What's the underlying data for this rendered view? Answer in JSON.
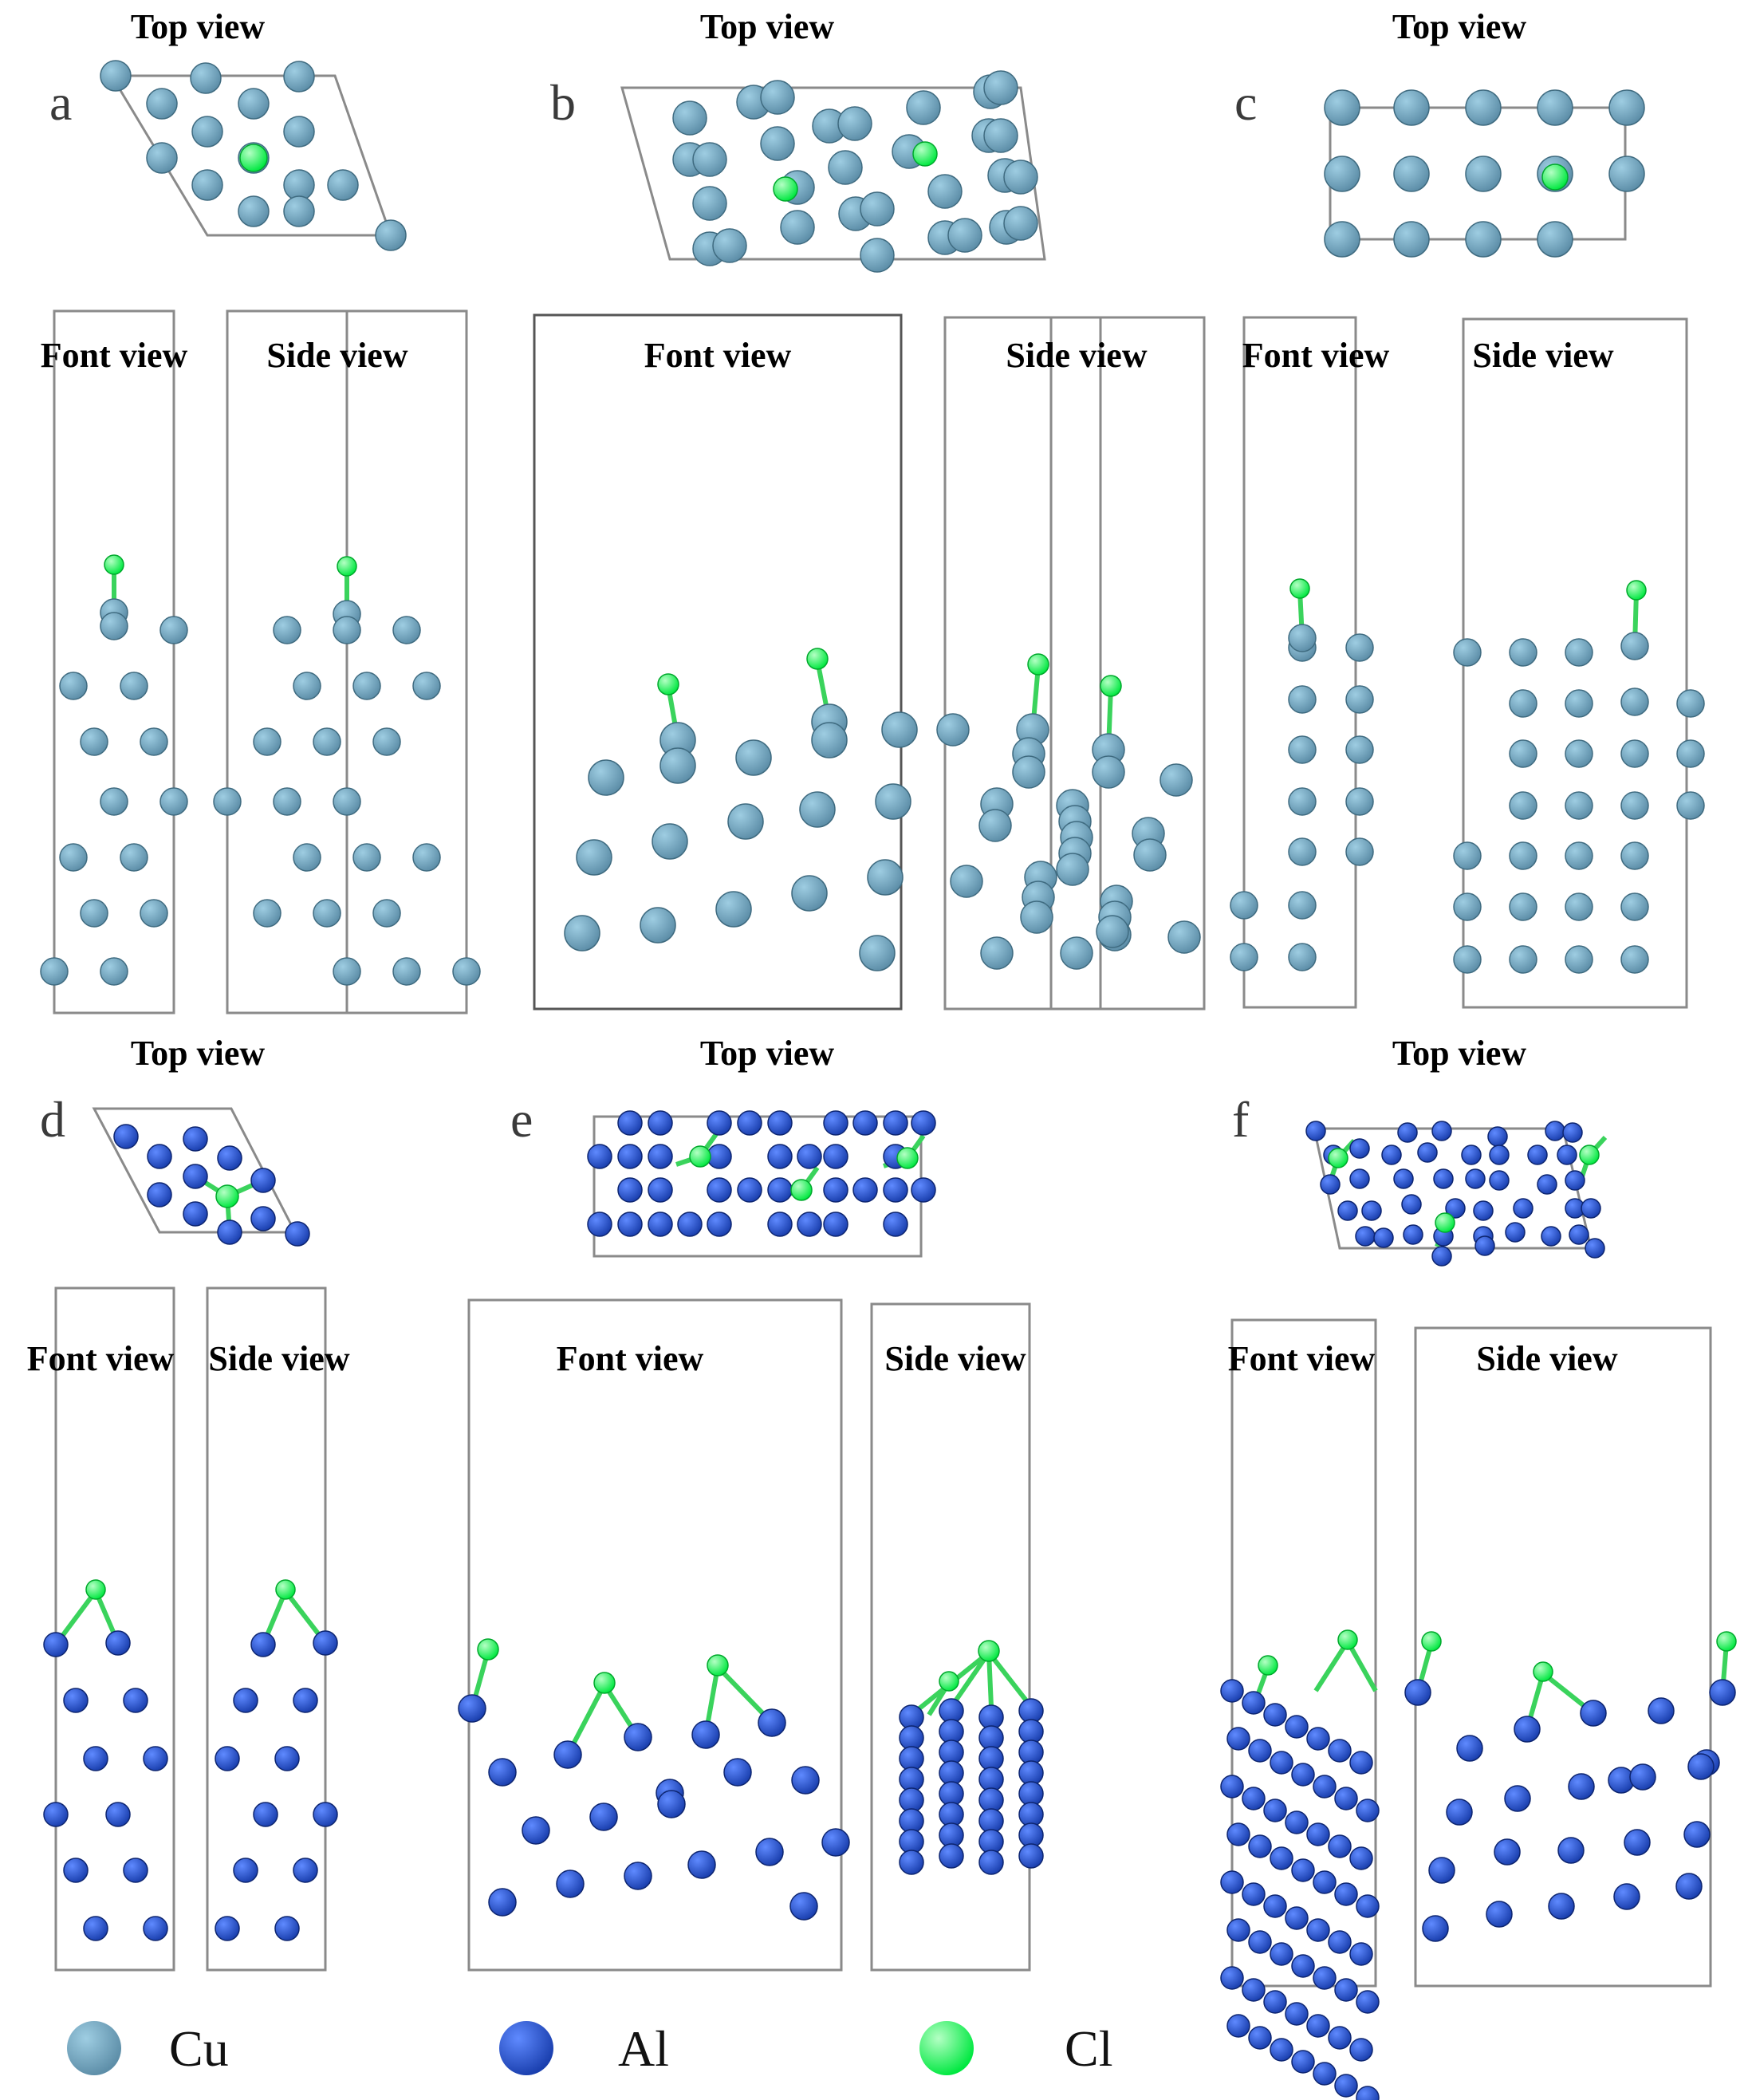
{
  "figure": {
    "panels": [
      {
        "id": "a",
        "label": "a",
        "element": "Cu",
        "top_view_label": "Top view",
        "front_view_label": "Font view",
        "side_view_label": "Side view"
      },
      {
        "id": "b",
        "label": "b",
        "element": "Cu",
        "top_view_label": "Top view",
        "front_view_label": "Font view",
        "side_view_label": "Side view"
      },
      {
        "id": "c",
        "label": "c",
        "element": "Cu",
        "top_view_label": "Top view",
        "front_view_label": "Font view",
        "side_view_label": "Side view"
      },
      {
        "id": "d",
        "label": "d",
        "element": "Al",
        "top_view_label": "Top view",
        "front_view_label": "Font view",
        "side_view_label": "Side view"
      },
      {
        "id": "e",
        "label": "e",
        "element": "Al",
        "top_view_label": "Top view",
        "front_view_label": "Font view",
        "side_view_label": "Side view"
      },
      {
        "id": "f",
        "label": "f",
        "element": "Al",
        "top_view_label": "Top view",
        "front_view_label": "Font view",
        "side_view_label": "Side view"
      }
    ],
    "legend": [
      {
        "symbol": "Cu",
        "color": "#5d8ea8"
      },
      {
        "symbol": "Al",
        "color": "#1a3fae"
      },
      {
        "symbol": "Cl",
        "color": "#00e840"
      }
    ]
  },
  "colors": {
    "cu_atom": "#5d8ea8",
    "cu_atom_light": "#9ecde2",
    "al_atom": "#1a3fae",
    "al_atom_light": "#5f8aff",
    "cl_atom": "#00e840",
    "cl_atom_light": "#b4ffc4",
    "cell_line": "#8a8a8a"
  }
}
